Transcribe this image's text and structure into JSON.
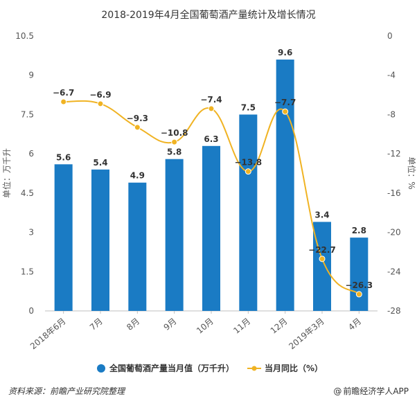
{
  "chart_data": {
    "type": "bar+line",
    "title": "2018-2019年4月全国葡萄酒产量统计及增长情况",
    "categories": [
      "2018年6月",
      "7月",
      "8月",
      "9月",
      "10月",
      "11月",
      "12月",
      "2019年3月",
      "4月"
    ],
    "series": [
      {
        "name": "全国葡萄酒产量当月值（万千升）",
        "type": "bar",
        "axis": "left",
        "color": "#1a7bc4",
        "values": [
          5.6,
          5.4,
          4.9,
          5.8,
          6.3,
          7.5,
          9.6,
          3.4,
          2.8
        ],
        "labels": [
          "5.6",
          "5.4",
          "4.9",
          "5.8",
          "6.3",
          "7.5",
          "9.6",
          "3.4",
          "2.8"
        ]
      },
      {
        "name": "当月同比（%）",
        "type": "line",
        "axis": "right",
        "color": "#f0b323",
        "values": [
          -6.7,
          -6.9,
          -9.3,
          -10.8,
          -7.4,
          -13.8,
          -7.7,
          -22.7,
          -26.3
        ],
        "labels": [
          "−6.7",
          "−6.9",
          "−9.3",
          "−10.8",
          "−7.4",
          "−13.8",
          "−7.7",
          "−22.7",
          "−26.3"
        ]
      }
    ],
    "y_left": {
      "label": "单位：万千升",
      "ylim": [
        0,
        10.5
      ],
      "ticks": [
        0,
        1.5,
        3,
        4.5,
        6,
        7.5,
        9,
        10.5
      ],
      "tick_labels": [
        "0",
        "1.5",
        "3",
        "4.5",
        "6",
        "7.5",
        "9",
        "10.5"
      ]
    },
    "y_right": {
      "label": "单位：%",
      "ylim": [
        -28,
        0
      ],
      "ticks": [
        0,
        -4,
        -8,
        -12,
        -16,
        -20,
        -24,
        -28
      ],
      "tick_labels": [
        "0",
        "-4",
        "-8",
        "-12",
        "-16",
        "-20",
        "-24",
        "-28"
      ]
    },
    "grid": false,
    "legend": "bottom-center"
  },
  "footer": {
    "source": "资料来源：前瞻产业研究院整理",
    "brand_icon": "at-icon",
    "brand": "前瞻经济学人APP"
  }
}
